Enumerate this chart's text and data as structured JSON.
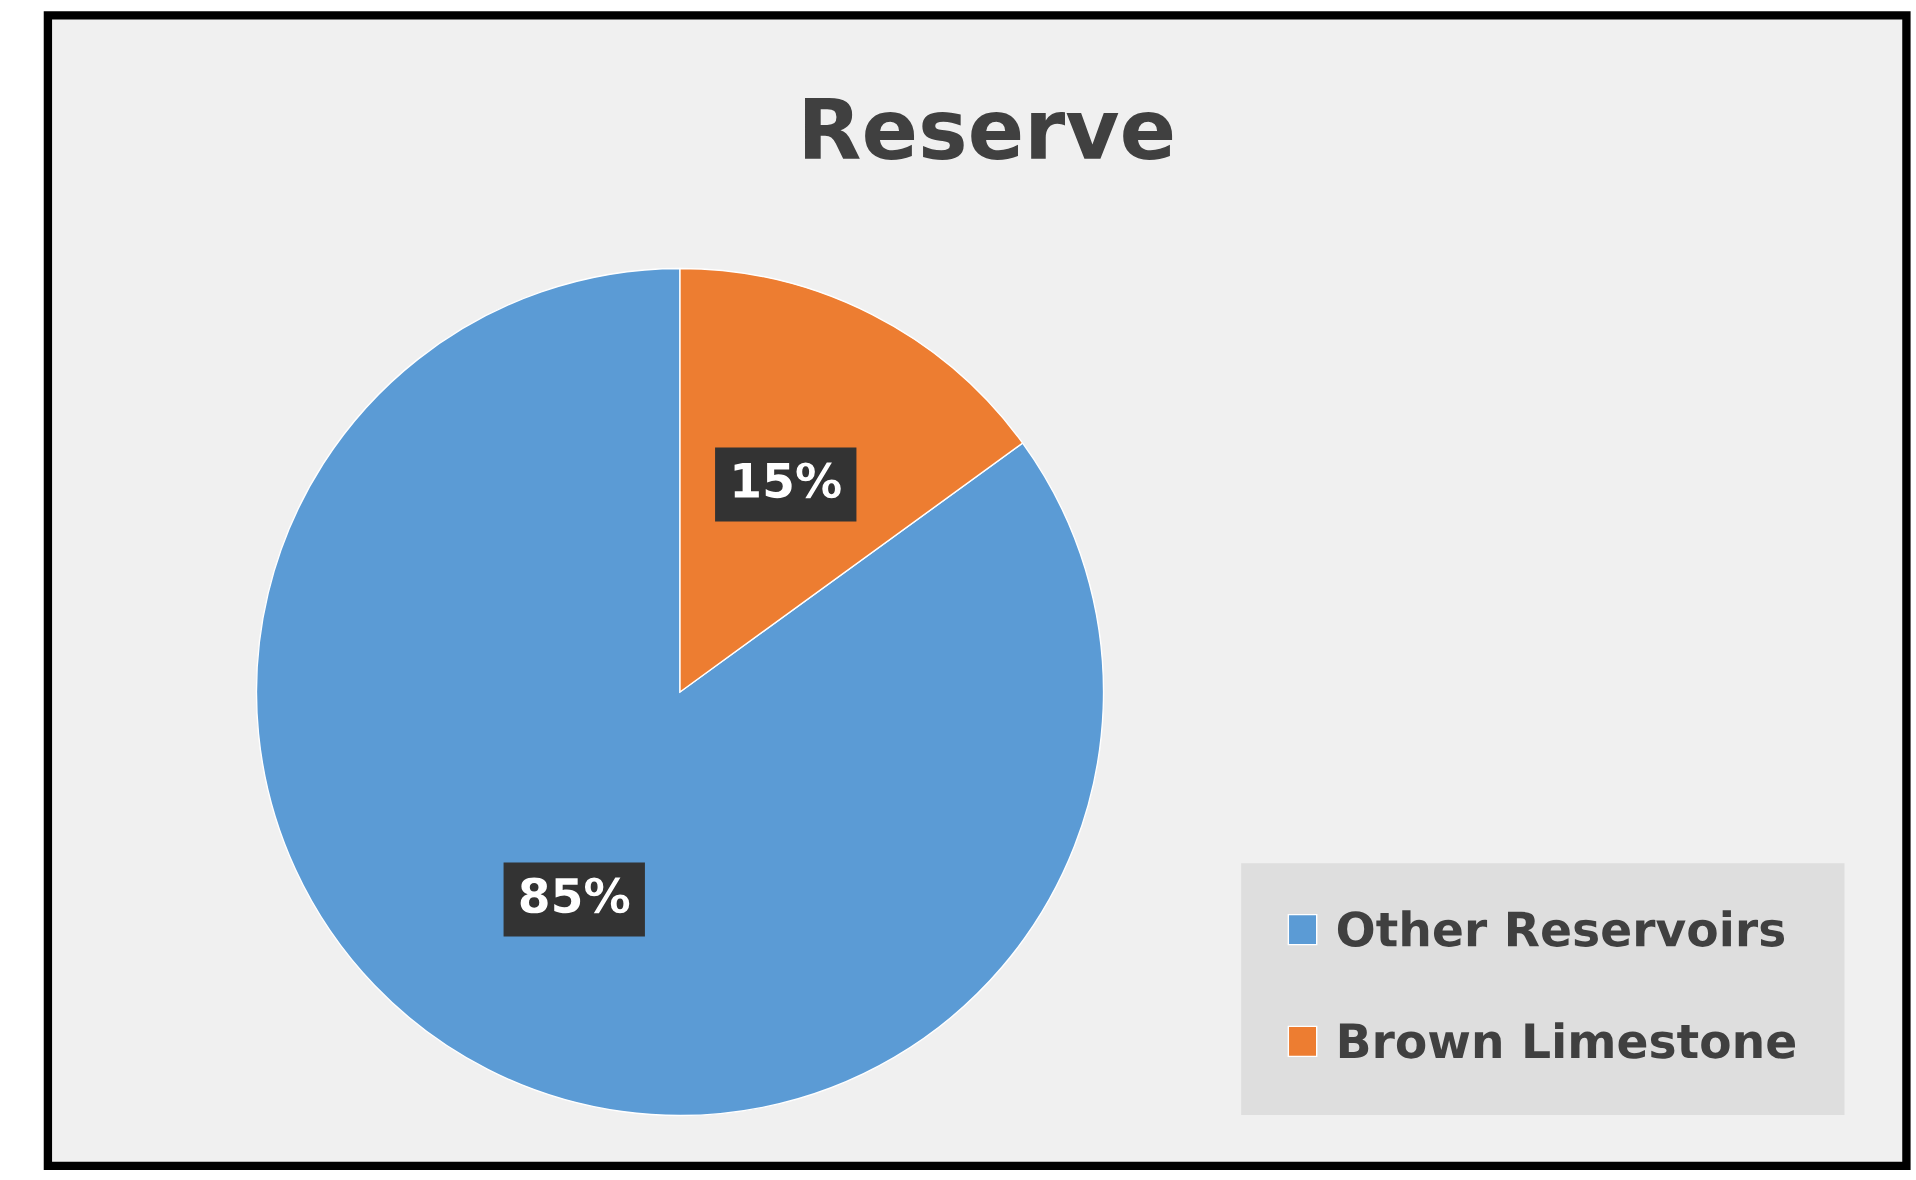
{
  "chart_data": {
    "type": "pie",
    "title": "Reserve",
    "categories": [
      "Other Reservoirs",
      "Brown Limestone"
    ],
    "values": [
      85,
      15
    ],
    "colors": [
      "#5b9bd5",
      "#ed7d31"
    ],
    "value_labels": [
      "85%",
      "15%"
    ],
    "legend": "bottom right"
  }
}
